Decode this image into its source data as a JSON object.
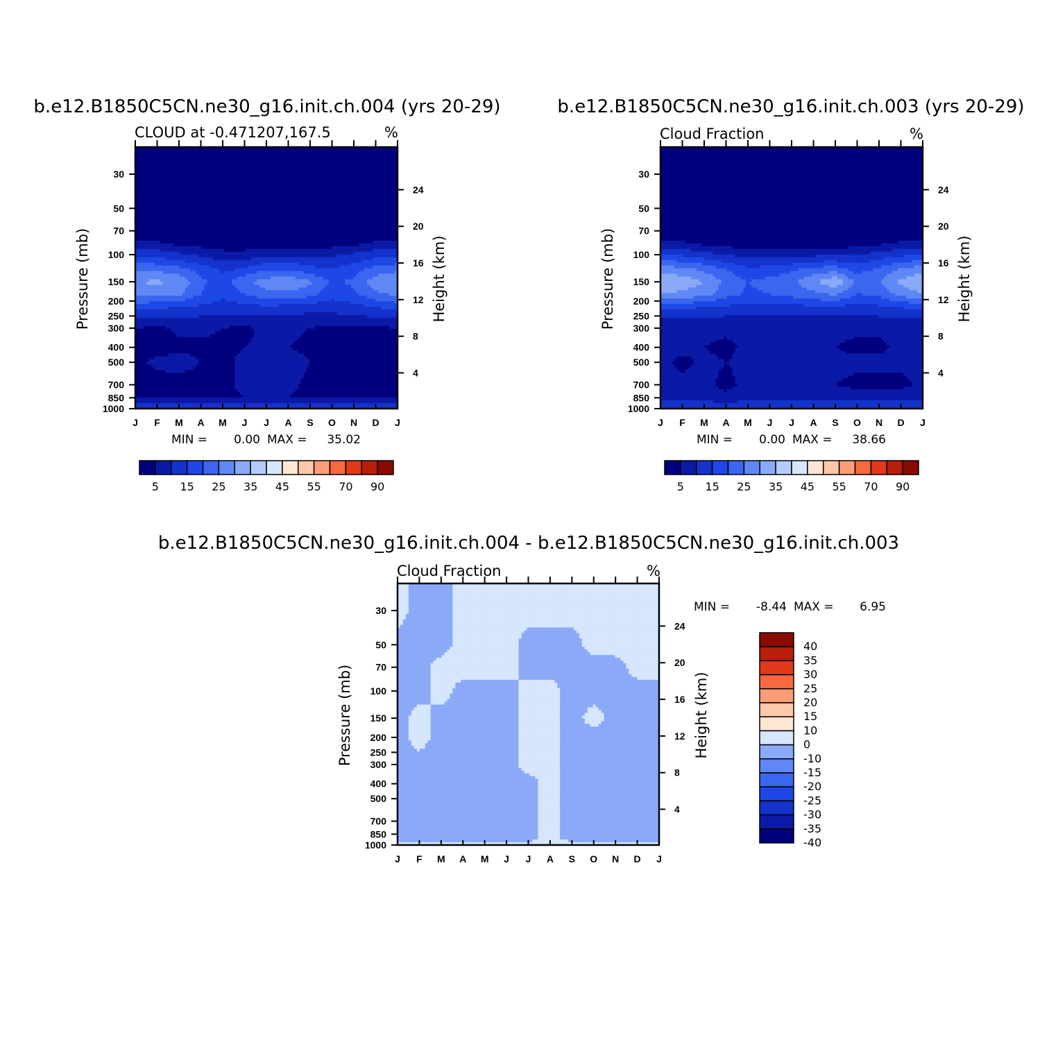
{
  "chart_data": [
    {
      "type": "heatmap",
      "title": "b.e12.B1850C5CN.ne30_g16.init.ch.004 (yrs 20-29)",
      "subtitle_left": "CLOUD at -0.471207,167.5",
      "units": "%",
      "ylabel": "Pressure (mb)",
      "y2label": "Height (km)",
      "x_ticks": [
        "J",
        "F",
        "M",
        "A",
        "M",
        "J",
        "J",
        "A",
        "S",
        "O",
        "N",
        "D",
        "J"
      ],
      "y_ticks": [
        30,
        50,
        70,
        100,
        150,
        200,
        250,
        300,
        400,
        500,
        700,
        850,
        1000
      ],
      "y2_ticks": [
        24,
        20,
        16,
        12,
        8,
        4
      ],
      "ylim": [
        20,
        1000
      ],
      "stats": {
        "min_label": "MIN =",
        "min": "0.00",
        "max_label": "MAX =",
        "max": "35.02"
      },
      "levels": [
        0,
        5,
        10,
        15,
        20,
        25,
        30,
        35,
        40,
        45,
        50,
        55,
        60,
        70,
        80,
        90
      ],
      "colorbar_labels": [
        "5",
        "15",
        "25",
        "35",
        "45",
        "55",
        "70",
        "90"
      ],
      "profile": [
        {
          "p": 20,
          "v": [
            1,
            1,
            1,
            1,
            1,
            1,
            1,
            1,
            1,
            1,
            1,
            1,
            1
          ]
        },
        {
          "p": 70,
          "v": [
            1,
            1,
            1,
            1,
            1,
            1,
            1,
            1,
            1,
            1,
            1,
            1,
            1
          ]
        },
        {
          "p": 85,
          "v": [
            7,
            6,
            4,
            3,
            2,
            2,
            2,
            2,
            2,
            3,
            4,
            6,
            7
          ]
        },
        {
          "p": 100,
          "v": [
            14,
            13,
            11,
            9,
            7,
            7,
            8,
            9,
            8,
            9,
            11,
            13,
            14
          ]
        },
        {
          "p": 125,
          "v": [
            24,
            24,
            22,
            18,
            14,
            16,
            20,
            20,
            17,
            15,
            18,
            22,
            24
          ]
        },
        {
          "p": 150,
          "v": [
            30,
            31,
            29,
            21,
            18,
            24,
            27,
            29,
            26,
            19,
            21,
            28,
            30
          ]
        },
        {
          "p": 180,
          "v": [
            26,
            27,
            26,
            20,
            16,
            20,
            24,
            24,
            22,
            17,
            19,
            24,
            26
          ]
        },
        {
          "p": 220,
          "v": [
            17,
            16,
            15,
            14,
            13,
            13,
            14,
            13,
            12,
            12,
            13,
            15,
            17
          ]
        },
        {
          "p": 260,
          "v": [
            10,
            9,
            9,
            9,
            9,
            8,
            9,
            9,
            8,
            8,
            9,
            9,
            10
          ]
        },
        {
          "p": 300,
          "v": [
            5,
            4,
            6,
            6,
            5,
            4,
            6,
            6,
            5,
            4,
            4,
            4,
            5
          ]
        },
        {
          "p": 400,
          "v": [
            3,
            3,
            4,
            4,
            4,
            5,
            6,
            5,
            4,
            3,
            3,
            3,
            3
          ]
        },
        {
          "p": 500,
          "v": [
            4,
            6,
            7,
            5,
            4,
            6,
            8,
            7,
            5,
            3,
            3,
            3,
            4
          ]
        },
        {
          "p": 700,
          "v": [
            3,
            3,
            3,
            3,
            4,
            6,
            6,
            6,
            4,
            3,
            3,
            3,
            3
          ]
        },
        {
          "p": 850,
          "v": [
            4,
            4,
            4,
            4,
            4,
            5,
            5,
            5,
            4,
            4,
            4,
            4,
            4
          ]
        },
        {
          "p": 950,
          "v": [
            12,
            12,
            12,
            12,
            12,
            12,
            12,
            12,
            12,
            12,
            12,
            12,
            12
          ]
        },
        {
          "p": 1000,
          "v": [
            14,
            14,
            14,
            14,
            14,
            14,
            14,
            14,
            14,
            14,
            14,
            14,
            14
          ]
        }
      ]
    },
    {
      "type": "heatmap",
      "title": "b.e12.B1850C5CN.ne30_g16.init.ch.003 (yrs 20-29)",
      "subtitle_left": "Cloud Fraction",
      "units": "%",
      "ylabel": "Pressure (mb)",
      "y2label": "Height (km)",
      "x_ticks": [
        "J",
        "F",
        "M",
        "A",
        "M",
        "J",
        "J",
        "A",
        "S",
        "O",
        "N",
        "D",
        "J"
      ],
      "y_ticks": [
        30,
        50,
        70,
        100,
        150,
        200,
        250,
        300,
        400,
        500,
        700,
        850,
        1000
      ],
      "y2_ticks": [
        24,
        20,
        16,
        12,
        8,
        4
      ],
      "ylim": [
        20,
        1000
      ],
      "stats": {
        "min_label": "MIN =",
        "min": "0.00",
        "max_label": "MAX =",
        "max": "38.66"
      },
      "levels": [
        0,
        5,
        10,
        15,
        20,
        25,
        30,
        35,
        40,
        45,
        50,
        55,
        60,
        70,
        80,
        90
      ],
      "colorbar_labels": [
        "5",
        "15",
        "25",
        "35",
        "45",
        "55",
        "70",
        "90"
      ],
      "profile": [
        {
          "p": 20,
          "v": [
            1,
            1,
            1,
            1,
            1,
            1,
            1,
            1,
            1,
            1,
            1,
            1,
            1
          ]
        },
        {
          "p": 70,
          "v": [
            1,
            1,
            1,
            1,
            1,
            1,
            1,
            1,
            1,
            1,
            1,
            1,
            1
          ]
        },
        {
          "p": 85,
          "v": [
            7,
            6,
            4,
            3,
            2,
            2,
            2,
            2,
            2,
            3,
            4,
            6,
            7
          ]
        },
        {
          "p": 100,
          "v": [
            15,
            14,
            12,
            10,
            8,
            8,
            8,
            9,
            9,
            10,
            12,
            14,
            15
          ]
        },
        {
          "p": 125,
          "v": [
            28,
            27,
            24,
            20,
            16,
            17,
            19,
            22,
            23,
            18,
            21,
            26,
            28
          ]
        },
        {
          "p": 150,
          "v": [
            35,
            33,
            30,
            24,
            20,
            22,
            24,
            29,
            34,
            24,
            25,
            31,
            35
          ]
        },
        {
          "p": 180,
          "v": [
            30,
            29,
            27,
            22,
            19,
            20,
            22,
            24,
            26,
            20,
            21,
            27,
            30
          ]
        },
        {
          "p": 220,
          "v": [
            17,
            16,
            15,
            14,
            13,
            13,
            13,
            14,
            14,
            13,
            14,
            15,
            17
          ]
        },
        {
          "p": 260,
          "v": [
            10,
            10,
            9,
            9,
            9,
            9,
            9,
            9,
            9,
            9,
            9,
            10,
            10
          ]
        },
        {
          "p": 300,
          "v": [
            6,
            6,
            6,
            6,
            6,
            6,
            6,
            6,
            6,
            6,
            6,
            6,
            6
          ]
        },
        {
          "p": 400,
          "v": [
            7,
            6,
            5,
            4,
            6,
            5,
            7,
            6,
            5,
            4,
            4,
            6,
            7
          ]
        },
        {
          "p": 500,
          "v": [
            6,
            4,
            6,
            5,
            6,
            6,
            5,
            6,
            6,
            6,
            6,
            6,
            6
          ]
        },
        {
          "p": 700,
          "v": [
            6,
            6,
            6,
            4,
            6,
            6,
            6,
            6,
            5,
            4,
            4,
            4,
            6
          ]
        },
        {
          "p": 850,
          "v": [
            7,
            7,
            7,
            6,
            7,
            7,
            7,
            7,
            7,
            7,
            7,
            7,
            7
          ]
        },
        {
          "p": 950,
          "v": [
            13,
            13,
            13,
            13,
            13,
            13,
            13,
            13,
            13,
            13,
            13,
            13,
            13
          ]
        },
        {
          "p": 1000,
          "v": [
            15,
            15,
            15,
            15,
            15,
            15,
            15,
            15,
            15,
            15,
            15,
            15,
            15
          ]
        }
      ]
    },
    {
      "type": "heatmap",
      "title": "b.e12.B1850C5CN.ne30_g16.init.ch.004 - b.e12.B1850C5CN.ne30_g16.init.ch.003",
      "subtitle_left": "Cloud Fraction",
      "units": "%",
      "ylabel": "Pressure (mb)",
      "y2label": "Height (km)",
      "x_ticks": [
        "J",
        "F",
        "M",
        "A",
        "M",
        "J",
        "J",
        "A",
        "S",
        "O",
        "N",
        "D",
        "J"
      ],
      "y_ticks": [
        30,
        50,
        70,
        100,
        150,
        200,
        250,
        300,
        400,
        500,
        700,
        850,
        1000
      ],
      "y2_ticks": [
        24,
        20,
        16,
        12,
        8,
        4
      ],
      "ylim": [
        20,
        1000
      ],
      "stats": {
        "min_label": "MIN =",
        "min": "-8.44",
        "max_label": "MAX =",
        "max": "6.95"
      },
      "levels": [
        -40,
        -35,
        -30,
        -25,
        -20,
        -15,
        -10,
        0,
        10,
        15,
        20,
        25,
        30,
        35,
        40
      ],
      "colorbar_labels": [
        "40",
        "35",
        "30",
        "25",
        "20",
        "15",
        "10",
        "0",
        "-10",
        "-15",
        "-20",
        "-25",
        "-30",
        "-35",
        "-40"
      ],
      "profile": [
        {
          "p": 20,
          "v": [
            1,
            -1,
            -1,
            1,
            1,
            1,
            1,
            1,
            1,
            1,
            1,
            1,
            1
          ]
        },
        {
          "p": 30,
          "v": [
            1,
            -1,
            -1,
            1,
            1,
            1,
            1,
            1,
            1,
            1,
            1,
            1,
            1
          ]
        },
        {
          "p": 50,
          "v": [
            -1,
            -1,
            -1,
            1,
            1,
            1,
            -1,
            -1,
            -1,
            1,
            1,
            1,
            1
          ]
        },
        {
          "p": 70,
          "v": [
            -1,
            -1,
            1,
            1,
            1,
            1,
            -1,
            -1,
            -1,
            -1,
            -1,
            1,
            1
          ]
        },
        {
          "p": 100,
          "v": [
            -1,
            -1,
            1,
            -1,
            -1,
            -1,
            1,
            1,
            -1,
            -1,
            -1,
            -1,
            -1
          ]
        },
        {
          "p": 150,
          "v": [
            -1,
            1,
            -1,
            -1,
            -1,
            -1,
            1,
            1,
            -1,
            1,
            -1,
            -1,
            -1
          ]
        },
        {
          "p": 200,
          "v": [
            -1,
            1,
            -1,
            -1,
            -1,
            -1,
            1,
            1,
            -1,
            -1,
            -1,
            -1,
            -1
          ]
        },
        {
          "p": 300,
          "v": [
            -1,
            -1,
            -1,
            -1,
            -1,
            -1,
            1,
            1,
            -1,
            -1,
            -1,
            -1,
            -1
          ]
        },
        {
          "p": 400,
          "v": [
            -1,
            -1,
            -1,
            -1,
            -1,
            -1,
            -1,
            1,
            -1,
            -1,
            -1,
            -1,
            -1
          ]
        },
        {
          "p": 700,
          "v": [
            -1,
            -1,
            -1,
            -1,
            -1,
            -1,
            -1,
            1,
            -1,
            -1,
            -1,
            -1,
            -1
          ]
        },
        {
          "p": 900,
          "v": [
            -1,
            -1,
            -1,
            -1,
            -1,
            -1,
            -1,
            1,
            -1,
            -1,
            -1,
            -1,
            -1
          ]
        },
        {
          "p": 1000,
          "v": [
            1,
            1,
            1,
            1,
            1,
            1,
            1,
            1,
            1,
            1,
            1,
            1,
            1
          ]
        }
      ]
    }
  ],
  "colors": {
    "full_palette": [
      "#00007f",
      "#0b1aa6",
      "#1432cc",
      "#1e48e6",
      "#3a66f0",
      "#6088f5",
      "#8aaaf8",
      "#b5ccfb",
      "#d5e6fd",
      "#ffe6d2",
      "#ffc8a8",
      "#ff9e76",
      "#f76a3f",
      "#e03a1a",
      "#b81e0a",
      "#8a0a00"
    ],
    "diff_palette": [
      "#00007f",
      "#0b1aa6",
      "#1432cc",
      "#1e48e6",
      "#3a66f0",
      "#6088f5",
      "#8aaaf8",
      "#d5e6fd",
      "#ffe6d2",
      "#ffc8a8",
      "#ff9e76",
      "#f76a3f",
      "#e03a1a",
      "#b81e0a",
      "#8a0a00"
    ]
  }
}
